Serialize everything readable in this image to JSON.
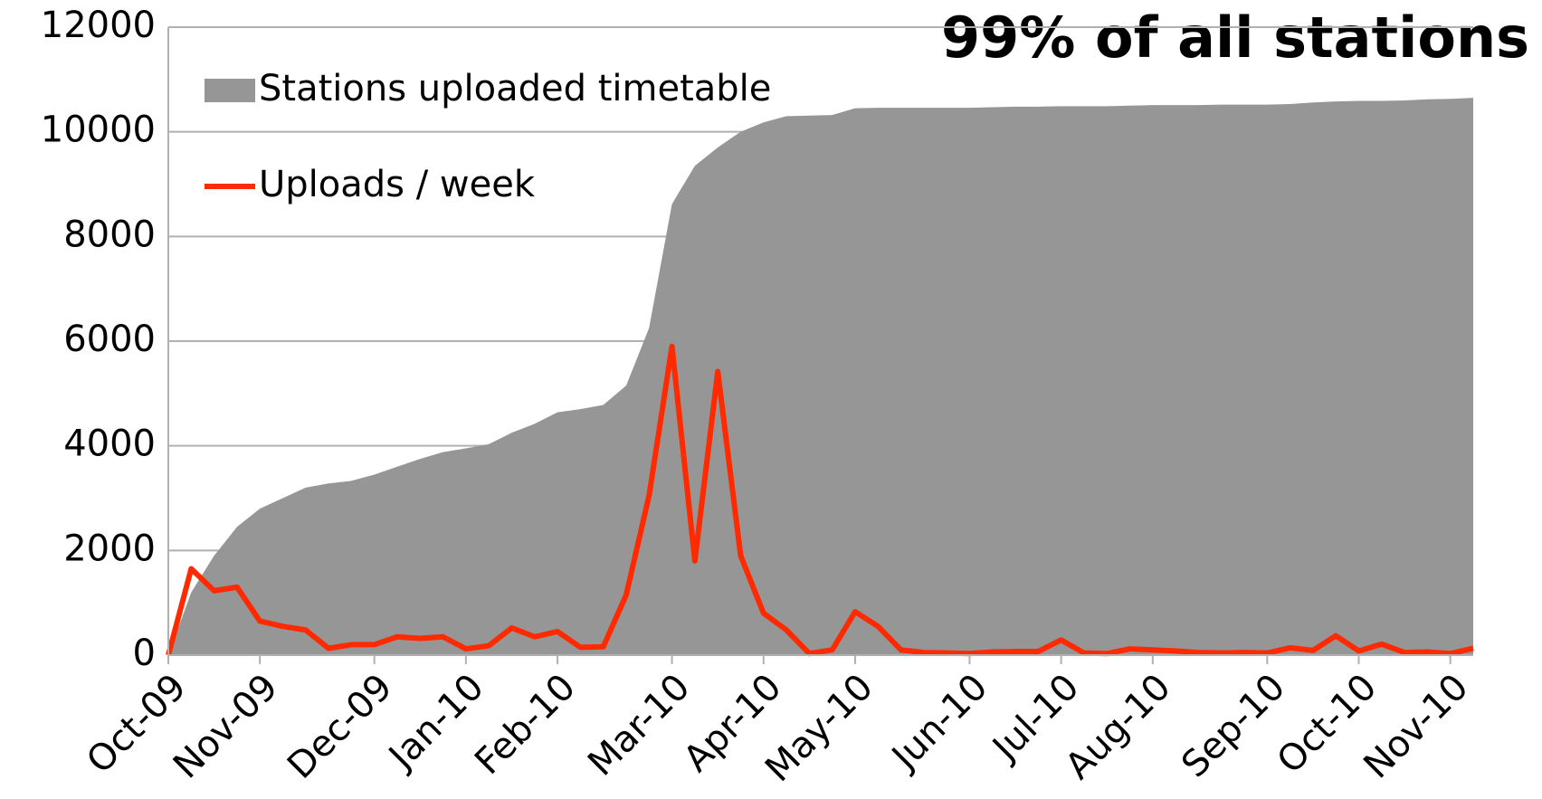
{
  "chart_data": {
    "type": "area-line",
    "annotation": "99% of all stations",
    "categories": [
      "Oct-09",
      null,
      null,
      null,
      "Nov-09",
      null,
      null,
      null,
      null,
      "Dec-09",
      null,
      null,
      null,
      "Jan-10",
      null,
      null,
      null,
      "Feb-10",
      null,
      null,
      null,
      null,
      "Mar-10",
      null,
      null,
      null,
      "Apr-10",
      null,
      null,
      null,
      "May-10",
      null,
      null,
      null,
      null,
      "Jun-10",
      null,
      null,
      null,
      "Jul-10",
      null,
      null,
      null,
      "Aug-10",
      null,
      null,
      null,
      null,
      "Sep-10",
      null,
      null,
      null,
      "Oct-10",
      null,
      null,
      null,
      "Nov-10",
      null
    ],
    "series": [
      {
        "name": "Stations uploaded timetable",
        "kind": "area",
        "color": "#969696",
        "values": [
          0,
          1200,
          1900,
          2450,
          2800,
          3000,
          3200,
          3280,
          3330,
          3450,
          3600,
          3750,
          3880,
          3950,
          4030,
          4250,
          4420,
          4640,
          4700,
          4780,
          5150,
          6250,
          8620,
          9350,
          9700,
          10000,
          10180,
          10300,
          10310,
          10320,
          10450,
          10460,
          10460,
          10460,
          10460,
          10460,
          10470,
          10480,
          10480,
          10490,
          10490,
          10490,
          10500,
          10510,
          10510,
          10510,
          10520,
          10520,
          10520,
          10530,
          10560,
          10580,
          10590,
          10590,
          10600,
          10620,
          10630,
          10650
        ]
      },
      {
        "name": "Uploads / week",
        "kind": "line",
        "color": "#ff2a00",
        "values": [
          0,
          1650,
          1230,
          1300,
          650,
          550,
          480,
          130,
          200,
          200,
          350,
          320,
          350,
          120,
          180,
          520,
          350,
          450,
          150,
          160,
          1150,
          3050,
          5900,
          1800,
          5420,
          1900,
          800,
          480,
          30,
          100,
          830,
          550,
          100,
          50,
          40,
          30,
          60,
          70,
          70,
          290,
          40,
          30,
          120,
          100,
          80,
          50,
          40,
          50,
          40,
          140,
          90,
          370,
          80,
          210,
          50,
          60,
          30,
          130
        ]
      }
    ],
    "ylim": [
      0,
      12000
    ],
    "yticks": [
      0,
      2000,
      4000,
      6000,
      8000,
      10000,
      12000
    ],
    "grid": true
  }
}
